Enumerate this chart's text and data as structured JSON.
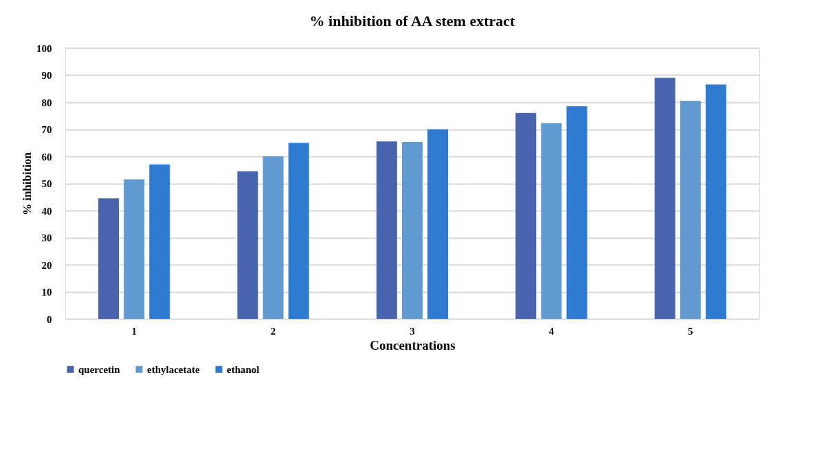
{
  "chart_data": {
    "type": "bar",
    "title": "% inhibition of AA stem extract",
    "xlabel": "Concentrations",
    "ylabel": "% inhibition",
    "categories": [
      "1",
      "2",
      "3",
      "4",
      "5"
    ],
    "series": [
      {
        "name": "quercetin",
        "color": "#4864ae",
        "values": [
          44.5,
          54.5,
          65.5,
          76,
          89
        ]
      },
      {
        "name": "ethylacetate",
        "color": "#5f9bd1",
        "values": [
          51.5,
          60,
          65.3,
          72.3,
          80.5
        ]
      },
      {
        "name": "ethanol",
        "color": "#2e7bd1",
        "values": [
          57,
          65,
          70,
          78.5,
          86.5
        ]
      }
    ],
    "ylim": [
      0,
      100
    ],
    "yticks": [
      0,
      10,
      20,
      30,
      40,
      50,
      60,
      70,
      80,
      90,
      100
    ],
    "grid": "y",
    "legend": "bottom"
  }
}
